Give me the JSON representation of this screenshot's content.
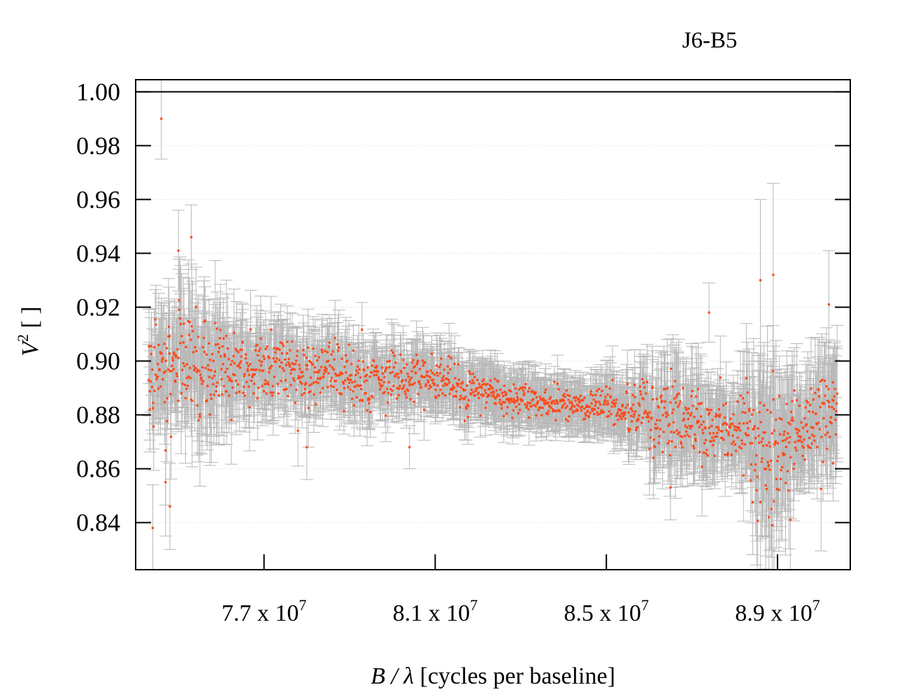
{
  "chart_data": {
    "type": "scatter",
    "title": "J6-B5",
    "xlabel_var": "B / λ",
    "xlabel_rest": " [cycles per baseline]",
    "ylabel_var": "V",
    "ylabel_sup": "2",
    "ylabel_rest": " [ ]",
    "xlim": [
      74000000,
      90700000
    ],
    "ylim": [
      0.8225,
      1.0045
    ],
    "x_ticks": [
      {
        "label": "7.7 x 10",
        "exp": "7",
        "value": 77000000
      },
      {
        "label": "8.1 x 10",
        "exp": "7",
        "value": 81000000
      },
      {
        "label": "8.5 x 10",
        "exp": "7",
        "value": 85000000
      },
      {
        "label": "8.9 x 10",
        "exp": "7",
        "value": 89000000
      }
    ],
    "y_ticks": [
      {
        "label": "0.84",
        "value": 0.84
      },
      {
        "label": "0.86",
        "value": 0.86
      },
      {
        "label": "0.88",
        "value": 0.88
      },
      {
        "label": "0.90",
        "value": 0.9
      },
      {
        "label": "0.92",
        "value": 0.92
      },
      {
        "label": "0.94",
        "value": 0.94
      },
      {
        "label": "0.96",
        "value": 0.96
      },
      {
        "label": "0.98",
        "value": 0.98
      },
      {
        "label": "1.00",
        "value": 1.0
      }
    ],
    "reference_line": 1.0,
    "grid": "horizontal dotted",
    "legend": "none",
    "colors": {
      "points": "#ff4a1a",
      "errorbars": "#b8b8b8",
      "grid": "#d6d6d6",
      "axes": "#000000"
    },
    "x_range_sampled": [
      74300000,
      90400000
    ],
    "envelope": [
      {
        "x": 74300000,
        "mean": 0.898,
        "spread": 0.01,
        "err": 0.014
      },
      {
        "x": 75500000,
        "mean": 0.9,
        "spread": 0.014,
        "err": 0.02
      },
      {
        "x": 76500000,
        "mean": 0.896,
        "spread": 0.009,
        "err": 0.013
      },
      {
        "x": 78000000,
        "mean": 0.896,
        "spread": 0.007,
        "err": 0.011
      },
      {
        "x": 80000000,
        "mean": 0.894,
        "spread": 0.006,
        "err": 0.01
      },
      {
        "x": 82000000,
        "mean": 0.889,
        "spread": 0.005,
        "err": 0.009
      },
      {
        "x": 84000000,
        "mean": 0.884,
        "spread": 0.004,
        "err": 0.008
      },
      {
        "x": 85500000,
        "mean": 0.882,
        "spread": 0.006,
        "err": 0.01
      },
      {
        "x": 86500000,
        "mean": 0.878,
        "spread": 0.01,
        "err": 0.016
      },
      {
        "x": 88000000,
        "mean": 0.876,
        "spread": 0.007,
        "err": 0.012
      },
      {
        "x": 88800000,
        "mean": 0.872,
        "spread": 0.016,
        "err": 0.026
      },
      {
        "x": 89600000,
        "mean": 0.874,
        "spread": 0.008,
        "err": 0.014
      },
      {
        "x": 90400000,
        "mean": 0.882,
        "spread": 0.012,
        "err": 0.02
      }
    ],
    "highlight_points": [
      {
        "x": 74600000,
        "y": 0.99,
        "err": 0.015
      },
      {
        "x": 74400000,
        "y": 0.838,
        "err": 0.016
      },
      {
        "x": 75300000,
        "y": 0.946,
        "err": 0.012
      },
      {
        "x": 75000000,
        "y": 0.941,
        "err": 0.015
      },
      {
        "x": 74700000,
        "y": 0.855,
        "err": 0.02
      },
      {
        "x": 74800000,
        "y": 0.846,
        "err": 0.016
      },
      {
        "x": 87400000,
        "y": 0.918,
        "err": 0.011
      },
      {
        "x": 86500000,
        "y": 0.853,
        "err": 0.012
      },
      {
        "x": 88900000,
        "y": 0.932,
        "err": 0.034
      },
      {
        "x": 88600000,
        "y": 0.93,
        "err": 0.03
      },
      {
        "x": 88800000,
        "y": 0.842,
        "err": 0.022
      },
      {
        "x": 89300000,
        "y": 0.841,
        "err": 0.024
      },
      {
        "x": 90200000,
        "y": 0.921,
        "err": 0.02
      },
      {
        "x": 90300000,
        "y": 0.862,
        "err": 0.014
      },
      {
        "x": 80400000,
        "y": 0.868,
        "err": 0.008
      },
      {
        "x": 78000000,
        "y": 0.868,
        "err": 0.012
      }
    ],
    "n_points": 1500
  }
}
